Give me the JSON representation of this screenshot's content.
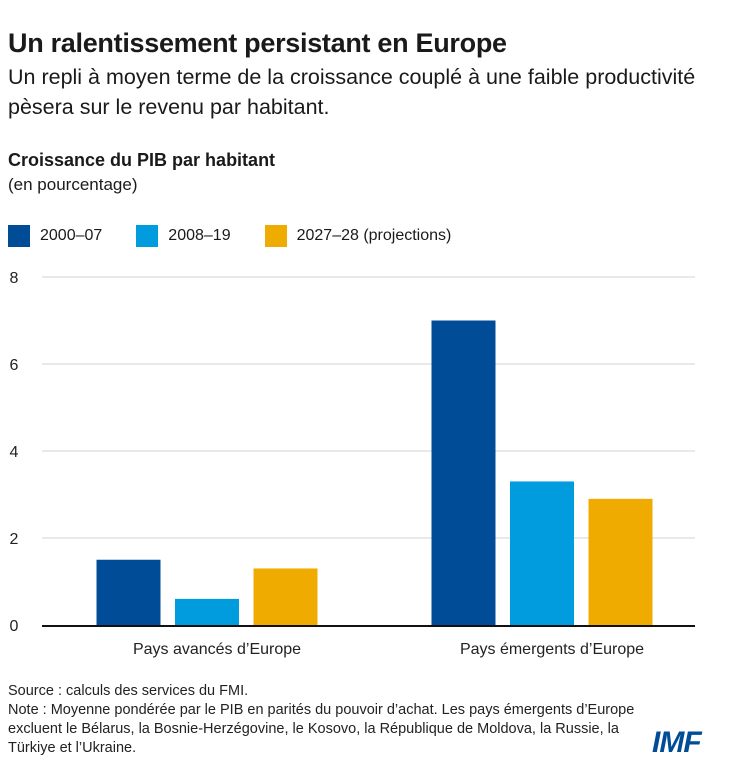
{
  "title": "Un ralentissement persistant en Europe",
  "subtitle": "Un repli à moyen terme de la croissance couplé à une faible productivité pèsera sur le revenu par habitant.",
  "logo": "IMF",
  "notes": {
    "source": "Source : calculs des services du FMI.",
    "note": "Note : Moyenne pondérée par le PIB en parités du pouvoir d’achat. Les pays émergents d’Europe excluent le Bélarus, la Bosnie-Herzégovine, le Kosovo, la République de Moldova, la Russie, la Türkiye et l’Ukraine."
  },
  "chart_data": {
    "type": "bar",
    "title": "Croissance du PIB par habitant",
    "units": "(en pourcentage)",
    "categories": [
      "Pays avancés d’Europe",
      "Pays émergents d’Europe"
    ],
    "series": [
      {
        "name": "2000–07",
        "color": "#004c97",
        "values": [
          1.5,
          7.0
        ]
      },
      {
        "name": "2008–19",
        "color": "#009cde",
        "values": [
          0.6,
          3.3
        ]
      },
      {
        "name": "2027–28 (projections)",
        "color": "#f0ab00",
        "values": [
          1.3,
          2.9
        ]
      }
    ],
    "ylim": [
      0,
      8
    ],
    "yticks": [
      "0",
      "2",
      "4",
      "6",
      "8"
    ],
    "grid": true,
    "legend": "top-left"
  }
}
